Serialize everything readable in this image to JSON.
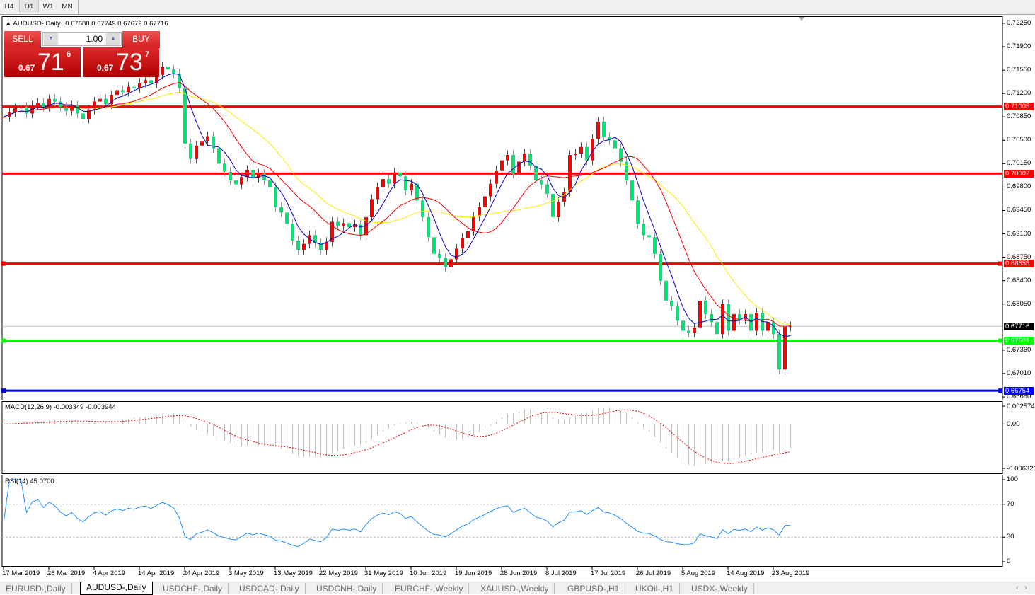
{
  "toolbar": {
    "timeframes": [
      "H4",
      "D1",
      "W1",
      "MN"
    ],
    "active": "D1"
  },
  "chart_header": {
    "symbol_tf": "AUDUSD-,Daily",
    "ohlc": "0.67688 0.67749 0.67672 0.67716"
  },
  "trade_panel": {
    "sell_label": "SELL",
    "buy_label": "BUY",
    "lot": "1.00",
    "sell_price": {
      "prefix": "0.67",
      "big": "71",
      "sup": "6"
    },
    "buy_price": {
      "prefix": "0.67",
      "big": "73",
      "sup": "7"
    }
  },
  "colors": {
    "bull": "#ff0000",
    "bear": "#00e676",
    "ma_fast": "#0000cc",
    "ma_mid": "#ff0000",
    "ma_slow": "#ffea00",
    "rsi": "#1e90ff",
    "macd_hist": "#c0c0c0",
    "macd_signal": "#ff0000"
  },
  "chart_data": {
    "type": "candlestick",
    "price_axis": {
      "max": 0.7225,
      "min": 0.6666,
      "ticks": [
        "0.72250",
        "0.71900",
        "0.71550",
        "0.71200",
        "0.70850",
        "0.70500",
        "0.70150",
        "0.69800",
        "0.69450",
        "0.69100",
        "0.68750",
        "0.68400",
        "0.68050",
        "0.67360",
        "0.67010",
        "0.66660"
      ]
    },
    "date_labels": [
      "17 Mar 2019",
      "26 Mar 2019",
      "4 Apr 2019",
      "14 Apr 2019",
      "24 Apr 2019",
      "3 May 2019",
      "13 May 2019",
      "22 May 2019",
      "31 May 2019",
      "10 Jun 2019",
      "19 Jun 2019",
      "28 Jun 2019",
      "8 Jul 2019",
      "17 Jul 2019",
      "26 Jul 2019",
      "5 Aug 2019",
      "14 Aug 2019",
      "23 Aug 2019"
    ],
    "closes": [
      0.7085,
      0.7092,
      0.7098,
      0.71,
      0.709,
      0.7102,
      0.7106,
      0.71,
      0.7112,
      0.7108,
      0.71,
      0.7094,
      0.7102,
      0.709,
      0.7082,
      0.7096,
      0.7108,
      0.7112,
      0.7104,
      0.7118,
      0.7125,
      0.7122,
      0.713,
      0.7128,
      0.7136,
      0.714,
      0.7135,
      0.7148,
      0.716,
      0.7156,
      0.715,
      0.7128,
      0.7045,
      0.7022,
      0.7042,
      0.7048,
      0.7056,
      0.7038,
      0.7015,
      0.7003,
      0.699,
      0.6984,
      0.6995,
      0.7006,
      0.6994,
      0.7,
      0.699,
      0.698,
      0.695,
      0.6942,
      0.6925,
      0.69,
      0.6886,
      0.6895,
      0.6908,
      0.6896,
      0.6886,
      0.6898,
      0.6928,
      0.6922,
      0.6926,
      0.692,
      0.6924,
      0.6908,
      0.6935,
      0.6962,
      0.698,
      0.6992,
      0.6985,
      0.7002,
      0.6996,
      0.6975,
      0.6985,
      0.696,
      0.6935,
      0.6905,
      0.688,
      0.6874,
      0.686,
      0.6872,
      0.6888,
      0.6904,
      0.6914,
      0.6936,
      0.695,
      0.6966,
      0.6985,
      0.7005,
      0.702,
      0.7028,
      0.7,
      0.7018,
      0.703,
      0.7012,
      0.699,
      0.6984,
      0.697,
      0.6935,
      0.6958,
      0.6972,
      0.7028,
      0.703,
      0.704,
      0.702,
      0.7052,
      0.7078,
      0.7055,
      0.705,
      0.7038,
      0.7018,
      0.699,
      0.696,
      0.6925,
      0.6908,
      0.6905,
      0.688,
      0.684,
      0.681,
      0.6802,
      0.678,
      0.6765,
      0.6762,
      0.677,
      0.681,
      0.679,
      0.6778,
      0.676,
      0.6805,
      0.6765,
      0.679,
      0.6782,
      0.679,
      0.6765,
      0.6792,
      0.6765,
      0.6778,
      0.676,
      0.6707,
      0.6771,
      0.67716
    ],
    "horizontal_lines": [
      {
        "price": 0.71005,
        "label": "0.71005",
        "color": "#ff0000"
      },
      {
        "price": 0.70002,
        "label": "0.70002",
        "color": "#ff0000"
      },
      {
        "price": 0.68655,
        "label": "0.68655",
        "color": "#ff0000"
      },
      {
        "price": 0.67501,
        "label": "0.67501",
        "color": "#00ff00"
      },
      {
        "price": 0.66754,
        "label": "0.66754",
        "color": "#0000ff"
      }
    ],
    "current_price": {
      "price": 0.67716,
      "label": "0.67716"
    }
  },
  "macd": {
    "title": "MACD(12,26,9) -0.003349 -0.003944",
    "max": 0.002574,
    "min": -0.006326,
    "labels": [
      "0.002574",
      "0.00",
      "-0.006326"
    ]
  },
  "rsi": {
    "title": "RSI(14) 45.0700",
    "levels": [
      70,
      30
    ],
    "labels": [
      "100",
      "70",
      "30",
      "0"
    ]
  },
  "tabs": [
    "EURUSD-,Daily",
    "AUDUSD-,Daily",
    "USDCHF-,Daily",
    "USDCAD-,Daily",
    "USDCNH-,Daily",
    "EURCHF-,Weekly",
    "XAUUSD-,Weekly",
    "GBPUSD-,H1",
    "UKOil-,H1",
    "USDX-,Weekly"
  ],
  "active_tab": "AUDUSD-,Daily"
}
